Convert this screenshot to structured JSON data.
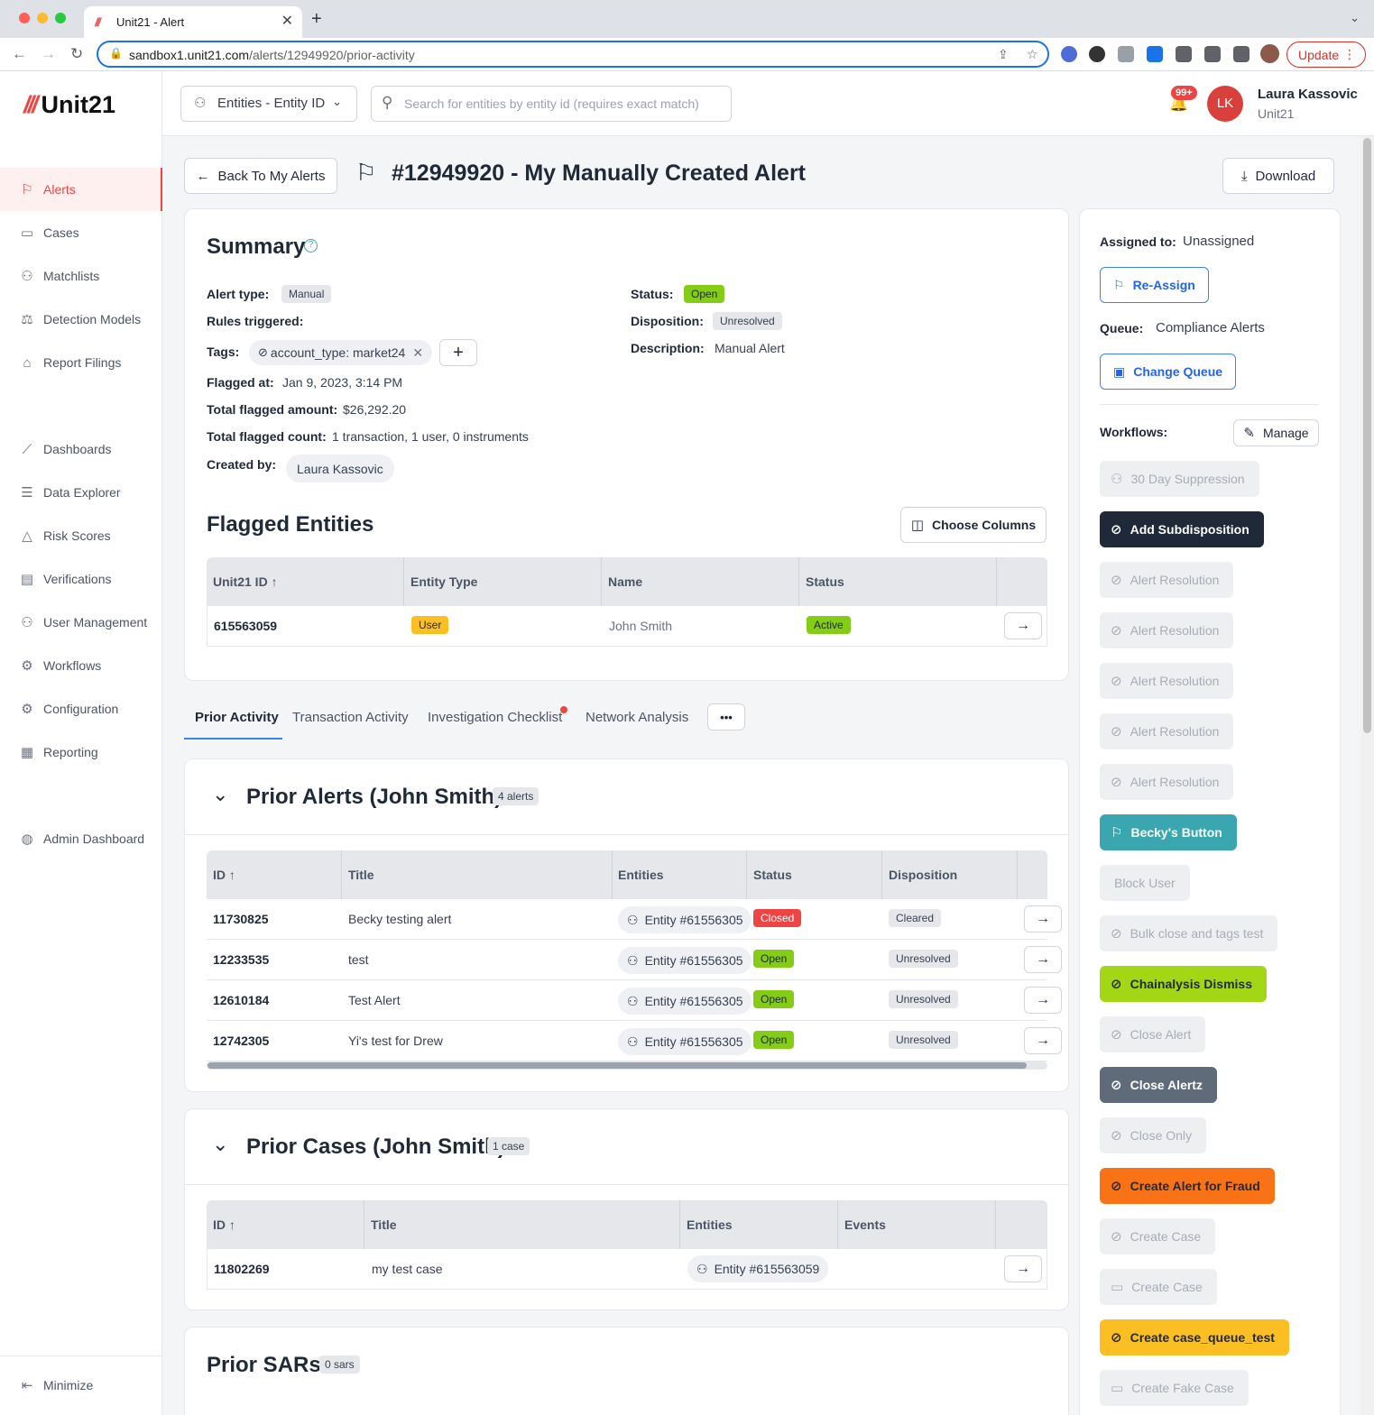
{
  "browser": {
    "tab_title": "Unit21 - Alert",
    "tab_favicon": "///",
    "url_host": "sandbox1.unit21.com",
    "url_path": "/alerts/12949920/prior-activity",
    "update_label": "Update"
  },
  "app": {
    "logo_slashes": "///",
    "logo_text": "Unit21"
  },
  "sidebar": {
    "items": [
      {
        "label": "Alerts",
        "icon": "flag-icon"
      },
      {
        "label": "Cases",
        "icon": "briefcase-icon"
      },
      {
        "label": "Matchlists",
        "icon": "user-x-icon"
      },
      {
        "label": "Detection Models",
        "icon": "scale-icon"
      },
      {
        "label": "Report Filings",
        "icon": "bank-icon"
      },
      {
        "label": "Dashboards",
        "icon": "chart-icon"
      },
      {
        "label": "Data Explorer",
        "icon": "data-search-icon"
      },
      {
        "label": "Risk Scores",
        "icon": "warning-icon"
      },
      {
        "label": "Verifications",
        "icon": "id-card-icon"
      },
      {
        "label": "User Management",
        "icon": "users-icon"
      },
      {
        "label": "Workflows",
        "icon": "workflow-gear-icon"
      },
      {
        "label": "Configuration",
        "icon": "gear-icon"
      },
      {
        "label": "Reporting",
        "icon": "report-icon"
      },
      {
        "label": "Admin Dashboard",
        "icon": "globe-icon"
      }
    ],
    "minimize_label": "Minimize"
  },
  "topbar": {
    "entity_select": "Entities - Entity ID",
    "search_placeholder": "Search for entities by entity id (requires exact match)",
    "notif_count": "99+",
    "avatar_initials": "LK",
    "user_name": "Laura Kassovic",
    "user_org": "Unit21"
  },
  "header": {
    "back_label": "Back To My Alerts",
    "title": "#12949920 - My Manually Created Alert",
    "download_label": "Download"
  },
  "summary": {
    "title": "Summary",
    "alert_type_label": "Alert type:",
    "alert_type": "Manual",
    "rules_label": "Rules triggered:",
    "tags_label": "Tags:",
    "tag": "account_type: market24",
    "flagged_at_label": "Flagged at:",
    "flagged_at": "Jan 9, 2023, 3:14 PM",
    "total_amount_label": "Total flagged amount:",
    "total_amount": "$26,292.20",
    "total_count_label": "Total flagged count:",
    "total_count": "1 transaction, 1 user, 0 instruments",
    "created_by_label": "Created by:",
    "created_by": "Laura Kassovic",
    "status_label": "Status:",
    "status": "Open",
    "disposition_label": "Disposition:",
    "disposition": "Unresolved",
    "description_label": "Description:",
    "description": "Manual Alert"
  },
  "flagged_entities": {
    "title": "Flagged Entities",
    "choose_columns": "Choose Columns",
    "columns": [
      "Unit21 ID",
      "Entity Type",
      "Name",
      "Status"
    ],
    "rows": [
      {
        "id": "615563059",
        "type": "User",
        "name": "John Smith",
        "status": "Active"
      }
    ]
  },
  "tabs": {
    "items": [
      "Prior Activity",
      "Transaction Activity",
      "Investigation Checklist",
      "Network Analysis"
    ],
    "more": "•••"
  },
  "prior_alerts": {
    "title": "Prior Alerts (John Smith)",
    "count": "4 alerts",
    "columns": [
      "ID",
      "Title",
      "Entities",
      "Status",
      "Disposition"
    ],
    "rows": [
      {
        "id": "11730825",
        "title": "Becky testing alert",
        "entity": "Entity #61556305",
        "status": "Closed",
        "disposition": "Cleared"
      },
      {
        "id": "12233535",
        "title": "test",
        "entity": "Entity #61556305",
        "status": "Open",
        "disposition": "Unresolved"
      },
      {
        "id": "12610184",
        "title": "Test Alert",
        "entity": "Entity #61556305",
        "status": "Open",
        "disposition": "Unresolved"
      },
      {
        "id": "12742305",
        "title": "Yi's test for Drew",
        "entity": "Entity #61556305",
        "status": "Open",
        "disposition": "Unresolved"
      }
    ]
  },
  "prior_cases": {
    "title": "Prior Cases (John Smith)",
    "count": "1 case",
    "columns": [
      "ID",
      "Title",
      "Entities",
      "Events"
    ],
    "rows": [
      {
        "id": "11802269",
        "title": "my test case",
        "entity": "Entity #615563059"
      }
    ]
  },
  "prior_sars": {
    "title": "Prior SARs",
    "count": "0 sars"
  },
  "right_panel": {
    "assigned_label": "Assigned to:",
    "assigned": "Unassigned",
    "reassign": "Re-Assign",
    "queue_label": "Queue:",
    "queue": "Compliance Alerts",
    "change_queue": "Change Queue",
    "workflows_label": "Workflows:",
    "manage": "Manage",
    "workflows": [
      {
        "label": "30 Day Suppression",
        "style": "disabled",
        "icon": "user-clock-icon"
      },
      {
        "label": "Add Subdisposition",
        "style": "dark",
        "icon": "check-circle-icon"
      },
      {
        "label": "Alert Resolution",
        "style": "disabled",
        "icon": "check-circle-icon"
      },
      {
        "label": "Alert Resolution",
        "style": "disabled",
        "icon": "check-circle-icon"
      },
      {
        "label": "Alert Resolution",
        "style": "disabled",
        "icon": "tag-icon"
      },
      {
        "label": "Alert Resolution",
        "style": "disabled",
        "icon": "check-circle-icon"
      },
      {
        "label": "Alert Resolution",
        "style": "disabled",
        "icon": "check-circle-icon"
      },
      {
        "label": "Becky's Button",
        "style": "teal",
        "icon": "flag-arrow-icon"
      },
      {
        "label": "Block User",
        "style": "disabled",
        "icon": ""
      },
      {
        "label": "Bulk close and tags test",
        "style": "disabled",
        "icon": "check-circle-icon"
      },
      {
        "label": "Chainalysis Dismiss",
        "style": "lime",
        "icon": "check-circle-icon"
      },
      {
        "label": "Close Alert",
        "style": "disabled",
        "icon": "check-circle-icon"
      },
      {
        "label": "Close Alertz",
        "style": "slate",
        "icon": "check-circle-icon"
      },
      {
        "label": "Close Only",
        "style": "disabled",
        "icon": "check-circle-icon"
      },
      {
        "label": "Create Alert for Fraud",
        "style": "orange",
        "icon": "check-circle-icon"
      },
      {
        "label": "Create Case",
        "style": "disabled",
        "icon": "check-circle-icon"
      },
      {
        "label": "Create Case",
        "style": "disabled",
        "icon": "briefcase-icon"
      },
      {
        "label": "Create case_queue_test",
        "style": "yellow",
        "icon": "check-circle-icon"
      },
      {
        "label": "Create Fake Case",
        "style": "disabled",
        "icon": "briefcase-icon"
      }
    ]
  },
  "colors": {
    "brand_red": "#ef4444",
    "status_green": "#84cc16",
    "link_blue": "#2563eb"
  }
}
